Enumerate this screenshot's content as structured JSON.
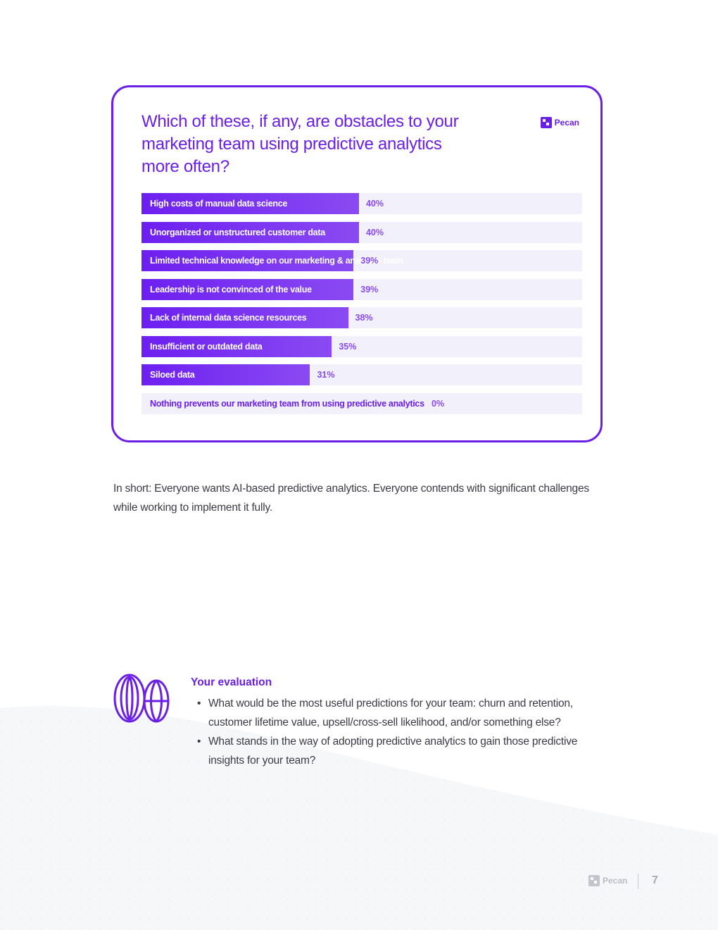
{
  "chart_data": {
    "type": "bar",
    "orientation": "horizontal",
    "title": "Which of these, if any, are obstacles to your marketing team using predictive analytics more often?",
    "xlim": [
      0,
      100
    ],
    "categories": [
      "High costs of manual data science",
      "Unorganized or unstructured customer data",
      "Limited technical knowledge on our marketing & analytics team",
      "Leadership is not convinced of the value",
      "Lack of internal data science resources",
      "Insufficient or outdated data",
      "Siloed data",
      "Nothing prevents our marketing team from using predictive analytics"
    ],
    "values": [
      40,
      40,
      39,
      39,
      38,
      35,
      31,
      0
    ],
    "value_labels": [
      "40%",
      "40%",
      "39%",
      "39%",
      "38%",
      "35%",
      "31%",
      "0%"
    ],
    "colors": {
      "bar": "#6d1ff0",
      "track": "#f1f0fb",
      "value": "#8a4af2"
    }
  },
  "brand": {
    "name": "Pecan"
  },
  "summary": "In short: Everyone wants AI-based predictive analytics. Everyone contends with significant challenges while working to implement it fully.",
  "evaluation": {
    "icon": "globe-lens-icon",
    "title": "Your evaluation",
    "items": [
      "What would be the most useful predictions for your team: churn and retention, customer lifetime value, upsell/cross-sell likelihood, and/or something else?",
      "What stands in the way of adopting predictive analytics to gain those predictive insights for your team?"
    ]
  },
  "footer": {
    "brand": "Pecan",
    "page": "7"
  }
}
